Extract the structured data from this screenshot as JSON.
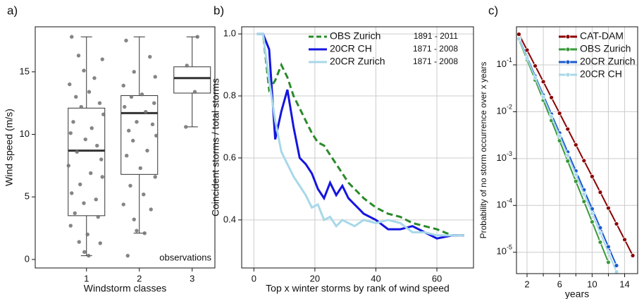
{
  "chart_data": [
    {
      "type": "box",
      "title": "a)",
      "x_label": "Windstorm classes",
      "y_label": "Wind speed (m/s)",
      "xlim": [
        0.03,
        3.43
      ],
      "xticks": [
        1,
        2,
        3
      ],
      "ylim": [
        -0.68,
        18.6
      ],
      "yticks": [
        0,
        5,
        10,
        15
      ],
      "grid": false,
      "legend_label": "observations",
      "box_color": "#333333",
      "point_color": "#707070",
      "boxes": [
        {
          "x": 1,
          "min": 0.3,
          "q1": 3.5,
          "median": 8.7,
          "q3": 12.1,
          "max": 17.8
        },
        {
          "x": 2,
          "min": 2.1,
          "q1": 6.8,
          "median": 11.7,
          "q3": 13.1,
          "max": 17.8
        },
        {
          "x": 3,
          "min": 10.6,
          "q1": 13.3,
          "median": 14.5,
          "q3": 15.4,
          "max": 17.8
        }
      ],
      "points_x": [
        0.72,
        0.85,
        1.3,
        0.95,
        1.15,
        0.68,
        1.05,
        0.8,
        1.25,
        0.9,
        1.32,
        0.75,
        1.1,
        0.7,
        0.98,
        1.2,
        0.82,
        1.28,
        0.66,
        1.08,
        1.3,
        0.88,
        0.72,
        1.18,
        0.95,
        0.78,
        1.22,
        0.7,
        1.02,
        0.86,
        1.26,
        0.96,
        1.04,
        1.75,
        2.2,
        1.9,
        2.3,
        1.7,
        2.05,
        1.85,
        2.28,
        1.72,
        2.12,
        1.95,
        2.25,
        1.8,
        2.32,
        1.88,
        2.15,
        1.76,
        2.02,
        2.3,
        1.83,
        2.08,
        1.7,
        2.22,
        1.9,
        1.95,
        2.1,
        1.78,
        3.1,
        2.9,
        3.05,
        2.88
      ],
      "points_y": [
        17.8,
        16.3,
        16.0,
        15.1,
        14.5,
        14.0,
        13.4,
        13.0,
        12.5,
        12.2,
        11.6,
        11.0,
        10.5,
        10.1,
        9.6,
        9.1,
        8.6,
        8.0,
        7.5,
        6.9,
        6.6,
        6.0,
        5.3,
        4.8,
        4.5,
        3.7,
        3.4,
        2.7,
        2.0,
        1.4,
        1.3,
        0.6,
        0.3,
        17.5,
        16.2,
        15.0,
        14.6,
        13.9,
        13.2,
        13.0,
        12.5,
        12.2,
        11.8,
        11.0,
        10.8,
        10.3,
        9.9,
        9.5,
        8.7,
        8.3,
        7.3,
        6.6,
        5.9,
        5.2,
        4.4,
        4.0,
        3.2,
        2.3,
        2.1,
        0.3,
        17.8,
        15.5,
        13.4,
        10.6
      ]
    },
    {
      "type": "line",
      "title": "b)",
      "x_label": "Top x winter storms by rank of wind speed",
      "y_label": "Coincident storms / total storms",
      "xlim": [
        -4,
        72
      ],
      "xticks": [
        0,
        20,
        40,
        60
      ],
      "ylim": [
        0.245,
        1.023
      ],
      "yticks": [
        0.4,
        0.6,
        0.8,
        {
          "value": 1,
          "label": "1.0"
        }
      ],
      "grid": true,
      "legend": "top right",
      "x": [
        1,
        3,
        5,
        7,
        9,
        11,
        13,
        15,
        17,
        19,
        21,
        23,
        25,
        27,
        29,
        31,
        33,
        36,
        40,
        44,
        48,
        52,
        56,
        60,
        65,
        69
      ],
      "series": [
        {
          "name": "OBS Zurich",
          "period": "1891 - 2011",
          "color": "#2a8a2a",
          "dashed": true,
          "values": [
            1,
            1,
            0.82,
            0.85,
            0.9,
            0.86,
            0.8,
            0.76,
            0.72,
            0.68,
            0.65,
            0.64,
            0.61,
            0.58,
            0.55,
            0.52,
            0.5,
            0.47,
            0.44,
            0.42,
            0.41,
            0.39,
            0.38,
            0.37,
            0.35,
            0.35
          ]
        },
        {
          "name": "20CR CH",
          "period": "1871 - 2008",
          "color": "#1515e0",
          "dashed": false,
          "values": [
            1,
            1,
            0.95,
            0.66,
            0.75,
            0.82,
            0.7,
            0.6,
            0.58,
            0.55,
            0.5,
            0.47,
            0.52,
            0.48,
            0.51,
            0.47,
            0.45,
            0.42,
            0.4,
            0.37,
            0.37,
            0.38,
            0.36,
            0.34,
            0.35,
            0.35
          ]
        },
        {
          "name": "20CR Zurich",
          "period": "1871 - 2008",
          "color": "#a8d8e8",
          "dashed": false,
          "values": [
            1,
            1,
            0.85,
            0.72,
            0.62,
            0.58,
            0.54,
            0.51,
            0.48,
            0.44,
            0.45,
            0.4,
            0.41,
            0.38,
            0.4,
            0.39,
            0.38,
            0.4,
            0.39,
            0.4,
            0.39,
            0.36,
            0.36,
            0.35,
            0.35,
            0.35
          ]
        }
      ]
    },
    {
      "type": "line",
      "title": "c)",
      "x_label": "years",
      "y_label": "Probability of no storm occurrence over x years",
      "xlim": [
        0.7,
        15.6
      ],
      "xticks": [
        2,
        6,
        10,
        14
      ],
      "xminor": [
        4,
        8,
        12
      ],
      "ylim": [
        3.5e-06,
        0.65
      ],
      "log_y": true,
      "grid": true,
      "legend": "top right",
      "markers": true,
      "yticks": [
        {
          "value": 1e-05,
          "label": "10",
          "exponent": "-5"
        },
        {
          "value": 0.0001,
          "label": "10",
          "exponent": "-4"
        },
        {
          "value": 0.001,
          "label": "10",
          "exponent": "-3"
        },
        {
          "value": 0.01,
          "label": "10",
          "exponent": "-2"
        },
        {
          "value": 0.1,
          "label": "10",
          "exponent": "-1"
        }
      ],
      "x": [
        1,
        2,
        3,
        4,
        5,
        6,
        7,
        8,
        9,
        10,
        11,
        12,
        13,
        14,
        15
      ],
      "series": [
        {
          "name": "CAT-DAM",
          "color": "#8b0000",
          "values": [
            0.45,
            0.207,
            0.0952,
            0.0438,
            0.0201,
            0.00927,
            0.00426,
            0.00196,
            0.000902,
            0.000415,
            0.000191,
            8.78e-05,
            4.04e-05,
            1.86e-05,
            8.5e-06
          ]
        },
        {
          "name": "OBS Zurich",
          "color": "#3a9a3a",
          "values": [
            0.35,
            0.129,
            0.0477,
            0.0176,
            0.0065,
            0.0024,
            0.000885,
            0.000327,
            0.000121,
            4.45e-05,
            1.64e-05,
            6.1e-06,
            null,
            null,
            null
          ]
        },
        {
          "name": "20CR Zurich",
          "color": "#1a5ad0",
          "values": [
            0.37,
            0.146,
            0.0574,
            0.0226,
            0.0089,
            0.00351,
            0.00138,
            0.000545,
            0.000215,
            8.46e-05,
            3.33e-05,
            1.31e-05,
            5.2e-06,
            null,
            null
          ]
        },
        {
          "name": "20CR CH",
          "color": "#a8d8e8",
          "values": [
            0.36,
            0.139,
            0.0534,
            0.0206,
            0.00791,
            0.00305,
            0.00117,
            0.000452,
            0.000174,
            6.7e-05,
            2.58e-05,
            9.9e-06,
            3.8e-06,
            null,
            null
          ]
        }
      ]
    }
  ]
}
